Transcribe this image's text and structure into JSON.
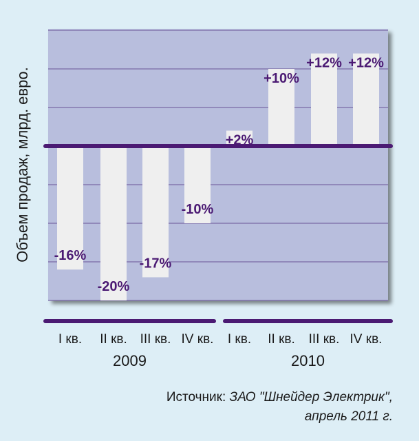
{
  "chart_data": {
    "type": "bar",
    "ylabel": "Объем продаж, млрд. евро.",
    "categories": [
      "I кв.",
      "II кв.",
      "III кв.",
      "IV кв.",
      "I кв.",
      "II кв.",
      "III кв.",
      "IV кв."
    ],
    "values": [
      -16,
      -20,
      -17,
      -10,
      2,
      10,
      12,
      12
    ],
    "data_labels": [
      "-16%",
      "-20%",
      "-17%",
      "-10%",
      "+2%",
      "+10%",
      "+12%",
      "+12%"
    ],
    "groups": [
      {
        "label": "2009",
        "categories": [
          "I кв.",
          "II кв.",
          "III кв.",
          "IV кв."
        ]
      },
      {
        "label": "2010",
        "categories": [
          "I кв.",
          "II кв.",
          "III кв.",
          "IV кв."
        ]
      }
    ],
    "ylim": [
      -20,
      15
    ],
    "grid": true,
    "colors": {
      "plot_bg": "#b8bedd",
      "bar": "#efefef",
      "accent": "#4b1a73",
      "grid": "#7a6aa6"
    }
  },
  "source": {
    "prefix": "Источник: ",
    "name": "ЗАО \"Шнейдер Электрик\",",
    "date": "апрель 2011 г."
  }
}
